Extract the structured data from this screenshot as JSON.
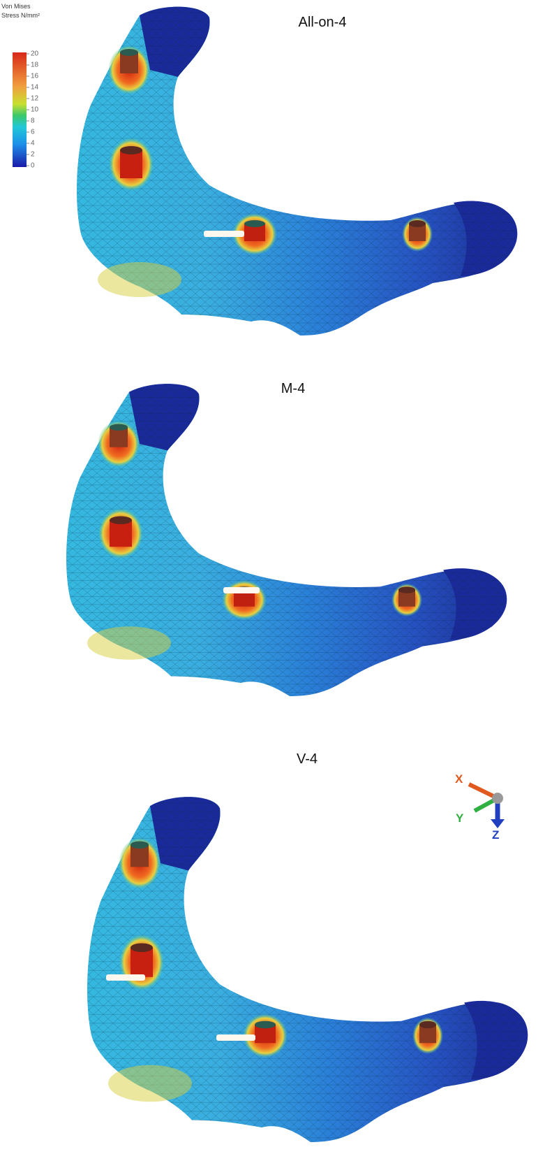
{
  "legend": {
    "title": [
      "Von Mises",
      "Stress N/mm²"
    ],
    "ticks": [
      0,
      2,
      4,
      6,
      8,
      10,
      12,
      14,
      16,
      18,
      20
    ]
  },
  "panels": [
    {
      "title": "All-on-4"
    },
    {
      "title": "M-4"
    },
    {
      "title": "V-4"
    }
  ],
  "triad": {
    "x": "X",
    "y": "Y",
    "z": "Z"
  }
}
